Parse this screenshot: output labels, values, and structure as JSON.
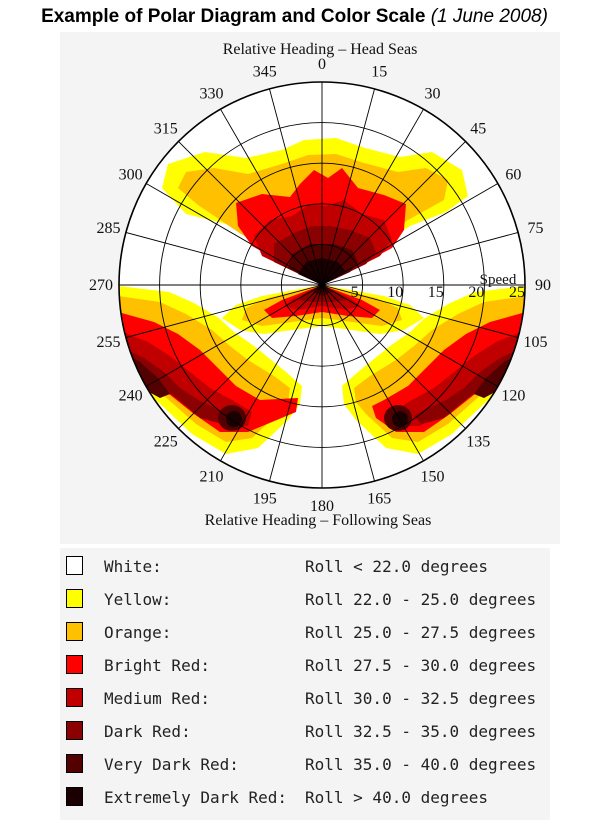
{
  "title": {
    "main": "Example of Polar Diagram and Color Scale",
    "date": "(1 June 2008)"
  },
  "diagram": {
    "top_label": "Relative Heading – Head Seas",
    "bottom_label": "Relative Heading – Following Seas",
    "speed_label": "Speed",
    "heading_ticks": [
      "0",
      "15",
      "30",
      "45",
      "60",
      "75",
      "90",
      "105",
      "120",
      "135",
      "150",
      "165",
      "180",
      "195",
      "210",
      "225",
      "240",
      "255",
      "270",
      "285",
      "300",
      "315",
      "330",
      "345"
    ],
    "speed_ticks": [
      "5",
      "10",
      "15",
      "20",
      "25"
    ],
    "speed_max": 25,
    "colors": {
      "white": "#ffffff",
      "yellow": "#ffff00",
      "orange": "#ffc000",
      "bright_red": "#ff0000",
      "medium_red": "#c00000",
      "dark_red": "#8b0000",
      "very_dark_red": "#520000",
      "extremely_dark_red": "#1a0000"
    }
  },
  "legend": [
    {
      "name": "White:",
      "range": "Roll < 22.0 degrees",
      "color": "#ffffff"
    },
    {
      "name": "Yellow:",
      "range": "Roll 22.0 - 25.0 degrees",
      "color": "#ffff00"
    },
    {
      "name": "Orange:",
      "range": "Roll 25.0 - 27.5 degrees",
      "color": "#ffc000"
    },
    {
      "name": "Bright Red:",
      "range": "Roll 27.5 - 30.0 degrees",
      "color": "#ff0000"
    },
    {
      "name": "Medium Red:",
      "range": "Roll 30.0 - 32.5 degrees",
      "color": "#c00000"
    },
    {
      "name": "Dark Red:",
      "range": "Roll 32.5 - 35.0 degrees",
      "color": "#8b0000"
    },
    {
      "name": "Very Dark Red:",
      "range": "Roll 35.0 - 40.0 degrees",
      "color": "#520000"
    },
    {
      "name": "Extremely Dark Red:",
      "range": "Roll > 40.0 degrees",
      "color": "#1a0000"
    }
  ]
}
